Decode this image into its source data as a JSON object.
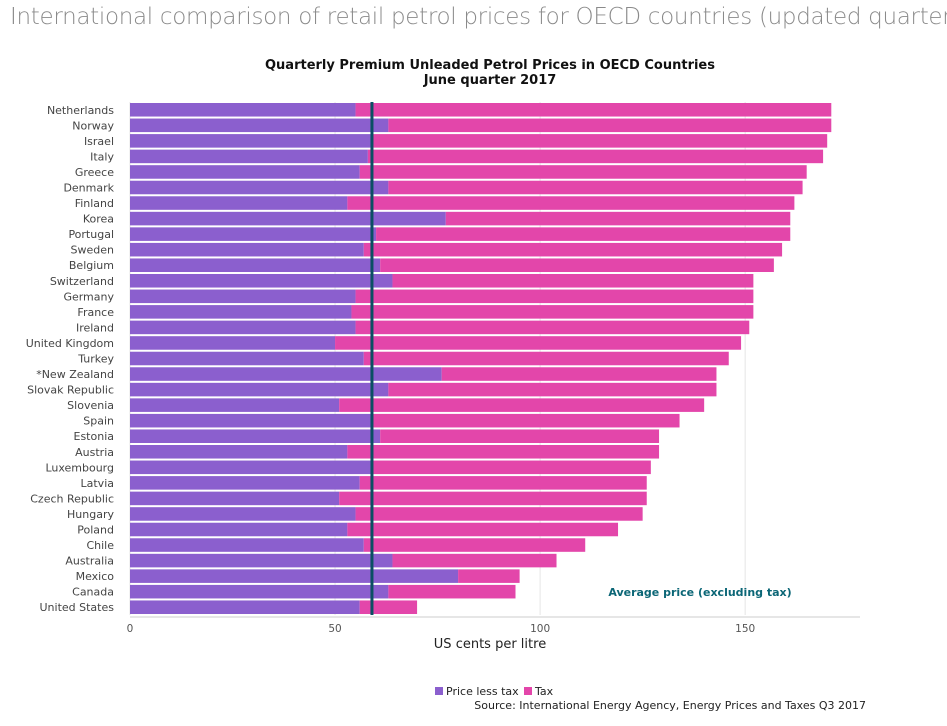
{
  "page": {
    "heading": "International comparison of retail petrol prices for OECD countries (updated quarterly)"
  },
  "chart_data": {
    "type": "bar",
    "orientation": "horizontal",
    "stacked": true,
    "title": "Quarterly Premium Unleaded Petrol Prices in OECD Countries",
    "subtitle": "June quarter 2017",
    "xlabel": "US cents per litre",
    "ylabel": "",
    "xlim": [
      0,
      178
    ],
    "xticks": [
      0,
      50,
      100,
      150
    ],
    "grid": true,
    "legend_position": "bottom",
    "categories": [
      "Netherlands",
      "Norway",
      "Israel",
      "Italy",
      "Greece",
      "Denmark",
      "Finland",
      "Korea",
      "Portugal",
      "Sweden",
      "Belgium",
      "Switzerland",
      "Germany",
      "France",
      "Ireland",
      "United Kingdom",
      "Turkey",
      "*New Zealand",
      "Slovak Republic",
      "Slovenia",
      "Spain",
      "Estonia",
      "Austria",
      "Luxembourg",
      "Latvia",
      "Czech Republic",
      "Hungary",
      "Poland",
      "Chile",
      "Australia",
      "Mexico",
      "Canada",
      "United States"
    ],
    "series": [
      {
        "name": "Price less tax",
        "color": "#8b5fce",
        "values": [
          55,
          63,
          59,
          58,
          56,
          63,
          53,
          77,
          60,
          57,
          61,
          64,
          55,
          54,
          55,
          50,
          57,
          76,
          63,
          51,
          59,
          61,
          53,
          59,
          56,
          51,
          55,
          53,
          57,
          64,
          80,
          63,
          56
        ]
      },
      {
        "name": "Tax",
        "color": "#e346aa",
        "values": [
          116,
          108,
          111,
          111,
          109,
          101,
          109,
          84,
          101,
          102,
          96,
          88,
          97,
          98,
          96,
          99,
          89,
          67,
          80,
          89,
          75,
          68,
          76,
          68,
          70,
          75,
          70,
          66,
          54,
          40,
          15,
          31,
          14
        ]
      }
    ],
    "reference_line": {
      "value": 59,
      "label": "Average price (excluding tax)",
      "color": "#0b4f63"
    },
    "source": "Source: International Energy Agency, Energy Prices and Taxes Q3 2017"
  }
}
